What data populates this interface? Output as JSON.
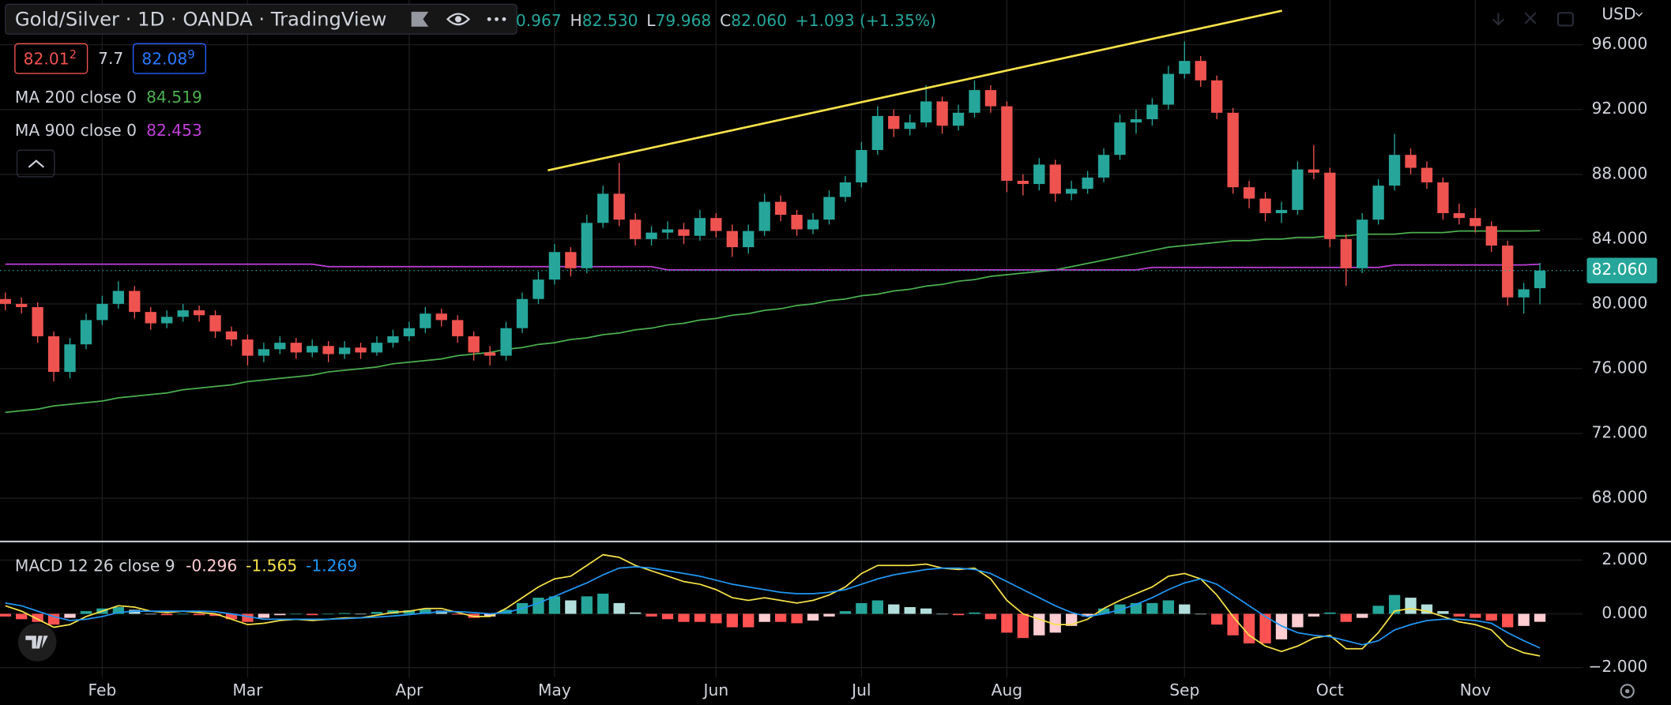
{
  "header": {
    "title": "Gold/Silver · 1D · OANDA · TradingView",
    "ohlc": [
      {
        "value": "0.967"
      },
      {
        "key": "H",
        "value": "82.530"
      },
      {
        "key": "L",
        "value": "79.968"
      },
      {
        "key": "C",
        "value": "82.060"
      },
      {
        "value": "+1.093 (+1.35%)"
      }
    ]
  },
  "quote": {
    "bid": "82.01",
    "bid_pip": "2",
    "spread": "7.7",
    "ask": "82.08",
    "ask_pip": "9"
  },
  "currency": "USD",
  "chart_data": [
    {
      "type": "candlestick",
      "categories": [
        null,
        null,
        null,
        null,
        null,
        null,
        "Feb",
        null,
        null,
        null,
        null,
        null,
        null,
        null,
        null,
        "Mar",
        null,
        null,
        null,
        null,
        null,
        null,
        null,
        null,
        null,
        "Apr",
        null,
        null,
        null,
        null,
        null,
        null,
        null,
        null,
        "May",
        null,
        null,
        null,
        null,
        null,
        null,
        null,
        null,
        null,
        "Jun",
        null,
        null,
        null,
        null,
        null,
        null,
        null,
        null,
        "Jul",
        null,
        null,
        null,
        null,
        null,
        null,
        null,
        null,
        "Aug",
        null,
        null,
        null,
        null,
        null,
        null,
        null,
        null,
        null,
        null,
        "Sep",
        null,
        null,
        null,
        null,
        null,
        null,
        null,
        null,
        "Oct",
        null,
        null,
        null,
        null,
        null,
        null,
        null,
        null,
        "Nov",
        null,
        null,
        null,
        null
      ],
      "candles": {
        "open": [
          80.3,
          80,
          79.8,
          78,
          75.8,
          77.5,
          79,
          80,
          80.8,
          79.5,
          78.8,
          79.2,
          79.6,
          79.3,
          78.3,
          77.8,
          76.8,
          77.2,
          77.6,
          77,
          77.4,
          76.9,
          77.3,
          77,
          77.6,
          78,
          78.5,
          79.4,
          79,
          78,
          77,
          76.8,
          78.5,
          80.3,
          81.5,
          83.2,
          82.2,
          85,
          86.8,
          85.2,
          84,
          84.4,
          84.6,
          84.2,
          85.3,
          84.5,
          83.5,
          84.5,
          86.3,
          85.5,
          84.6,
          85.2,
          86.6,
          87.5,
          89.5,
          91.6,
          90.8,
          91.2,
          92.5,
          91,
          91.8,
          93.2,
          92.2,
          87.6,
          87.4,
          88.6,
          86.8,
          87.1,
          87.8,
          89.2,
          91.2,
          91.4,
          92.3,
          94.2,
          95,
          93.8,
          91.8,
          87.2,
          86.5,
          85.6,
          85.8,
          88.3,
          88.1,
          84,
          82.2,
          85.2,
          87.3,
          89.2,
          88.4,
          87.5,
          85.6,
          85.3,
          84.8,
          83.6,
          80.4,
          80.967
        ],
        "high": [
          80.7,
          80.4,
          80.1,
          78.3,
          77.9,
          79.4,
          80.5,
          81.4,
          81.1,
          79.8,
          79.6,
          80.0,
          79.9,
          79.6,
          78.6,
          78.1,
          77.6,
          78.0,
          77.9,
          77.8,
          77.7,
          77.7,
          77.6,
          78.0,
          78.4,
          78.9,
          79.8,
          79.7,
          79.3,
          78.3,
          77.4,
          78.9,
          80.7,
          82.0,
          83.7,
          83.5,
          85.5,
          87.3,
          88.7,
          85.6,
          84.8,
          85.1,
          85.0,
          85.8,
          85.6,
          84.9,
          84.9,
          86.8,
          86.7,
          85.8,
          85.6,
          87.0,
          87.9,
          90.0,
          92.2,
          92.0,
          91.7,
          93.5,
          92.8,
          92.3,
          93.8,
          93.5,
          92.5,
          88.0,
          89.0,
          88.9,
          87.6,
          88.2,
          89.6,
          91.7,
          92.0,
          92.7,
          94.7,
          96.2,
          95.3,
          94.1,
          92.1,
          87.6,
          86.9,
          86.3,
          88.8,
          89.8,
          88.4,
          84.3,
          85.6,
          87.7,
          90.5,
          89.6,
          88.8,
          87.8,
          86.2,
          85.9,
          85.1,
          83.9,
          81.3,
          82.53
        ],
        "low": [
          79.6,
          79.4,
          77.6,
          75.2,
          75.4,
          77.2,
          78.7,
          79.7,
          79.1,
          78.4,
          78.5,
          78.9,
          78.9,
          77.9,
          77.4,
          76.2,
          76.4,
          76.9,
          76.6,
          76.7,
          76.4,
          76.6,
          76.6,
          76.8,
          77.3,
          77.7,
          78.2,
          78.6,
          77.6,
          76.5,
          76.2,
          76.5,
          78.2,
          80.0,
          81.2,
          81.7,
          81.9,
          84.7,
          84.8,
          83.6,
          83.6,
          84.0,
          83.7,
          83.9,
          84.1,
          82.9,
          83.1,
          84.2,
          85.1,
          84.2,
          84.3,
          84.9,
          86.3,
          87.2,
          89.2,
          90.3,
          90.4,
          90.9,
          90.5,
          90.7,
          91.5,
          91.8,
          86.9,
          86.7,
          87.0,
          86.3,
          86.4,
          86.8,
          87.5,
          88.9,
          90.5,
          91.0,
          92.0,
          93.9,
          93.4,
          91.4,
          86.8,
          85.9,
          85.1,
          85.0,
          85.5,
          87.7,
          83.5,
          81.1,
          81.9,
          84.9,
          87.0,
          88.0,
          87.1,
          85.2,
          84.9,
          84.4,
          83.2,
          79.9,
          79.4,
          79.968
        ],
        "close": [
          80,
          79.8,
          78,
          75.8,
          77.5,
          79,
          80,
          80.8,
          79.5,
          78.8,
          79.2,
          79.6,
          79.3,
          78.3,
          77.8,
          76.8,
          77.2,
          77.6,
          77,
          77.4,
          76.9,
          77.3,
          77,
          77.6,
          78,
          78.5,
          79.4,
          79,
          78,
          77,
          76.8,
          78.5,
          80.3,
          81.5,
          83.2,
          82.2,
          85,
          86.8,
          85.2,
          84,
          84.4,
          84.6,
          84.2,
          85.3,
          84.5,
          83.5,
          84.5,
          86.3,
          85.5,
          84.6,
          85.2,
          86.6,
          87.5,
          89.5,
          91.6,
          90.8,
          91.2,
          92.5,
          91,
          91.8,
          93.2,
          92.2,
          87.6,
          87.4,
          88.6,
          86.8,
          87.1,
          87.8,
          89.2,
          91.2,
          91.4,
          92.3,
          94.2,
          95,
          93.8,
          91.8,
          87.2,
          86.5,
          85.6,
          85.8,
          88.3,
          88.1,
          84,
          82.2,
          85.2,
          87.3,
          89.2,
          88.4,
          87.5,
          85.6,
          85.3,
          84.8,
          83.6,
          80.4,
          80.9,
          82.06
        ]
      },
      "up_color": "#26a69a",
      "down_color": "#ef5350",
      "last_label": "82.060",
      "series": [
        {
          "name": "MA 200 close 0",
          "color": "#4caf50",
          "values": [
            73.3,
            73.4,
            73.5,
            73.7,
            73.8,
            73.9,
            74.0,
            74.2,
            74.3,
            74.4,
            74.5,
            74.7,
            74.8,
            74.9,
            75.0,
            75.2,
            75.3,
            75.4,
            75.5,
            75.6,
            75.8,
            75.9,
            76.0,
            76.1,
            76.3,
            76.4,
            76.5,
            76.6,
            76.8,
            76.9,
            77.0,
            77.2,
            77.3,
            77.5,
            77.6,
            77.8,
            77.9,
            78.1,
            78.2,
            78.4,
            78.5,
            78.7,
            78.8,
            79.0,
            79.1,
            79.3,
            79.4,
            79.6,
            79.7,
            79.9,
            80.0,
            80.2,
            80.3,
            80.5,
            80.6,
            80.8,
            80.9,
            81.1,
            81.2,
            81.4,
            81.5,
            81.7,
            81.8,
            81.9,
            82.0,
            82.1,
            82.3,
            82.5,
            82.7,
            82.9,
            83.1,
            83.3,
            83.5,
            83.6,
            83.7,
            83.8,
            83.9,
            83.9,
            84.0,
            84.0,
            84.1,
            84.1,
            84.2,
            84.2,
            84.3,
            84.3,
            84.3,
            84.4,
            84.4,
            84.4,
            84.5,
            84.5,
            84.5,
            84.5,
            84.5,
            84.519
          ]
        },
        {
          "name": "MA 900 close 0",
          "color": "#c040d8",
          "values": [
            82.45,
            82.45,
            82.45,
            82.45,
            82.45,
            82.45,
            82.45,
            82.45,
            82.45,
            82.45,
            82.45,
            82.45,
            82.45,
            82.45,
            82.45,
            82.45,
            82.45,
            82.45,
            82.45,
            82.45,
            82.3,
            82.3,
            82.3,
            82.3,
            82.3,
            82.3,
            82.3,
            82.3,
            82.3,
            82.3,
            82.3,
            82.3,
            82.3,
            82.3,
            82.3,
            82.3,
            82.3,
            82.3,
            82.3,
            82.3,
            82.3,
            82.1,
            82.1,
            82.1,
            82.1,
            82.1,
            82.1,
            82.1,
            82.1,
            82.1,
            82.1,
            82.1,
            82.1,
            82.1,
            82.1,
            82.1,
            82.1,
            82.1,
            82.1,
            82.1,
            82.1,
            82.1,
            82.1,
            82.1,
            82.1,
            82.1,
            82.1,
            82.1,
            82.1,
            82.1,
            82.1,
            82.25,
            82.25,
            82.25,
            82.25,
            82.25,
            82.25,
            82.25,
            82.25,
            82.25,
            82.25,
            82.25,
            82.25,
            82.25,
            82.25,
            82.25,
            82.4,
            82.4,
            82.4,
            82.4,
            82.4,
            82.4,
            82.4,
            82.4,
            82.4,
            82.453
          ]
        }
      ],
      "ylim": [
        65.36,
        98.76
      ],
      "yticks": [
        {
          "value": 96,
          "label": "96.000"
        },
        {
          "value": 92,
          "label": "92.000"
        },
        {
          "value": 88,
          "label": "88.000"
        },
        {
          "value": 84,
          "label": "84.000"
        },
        {
          "value": 80,
          "label": "80.000"
        },
        {
          "value": 76,
          "label": "76.000"
        },
        {
          "value": 72,
          "label": "72.000"
        },
        {
          "value": 68,
          "label": "68.000"
        }
      ],
      "grid": true
    },
    {
      "type": "macd",
      "title": "MACD 12 26 close 9",
      "histogram": {
        "colors": [
          "#26a69a",
          "#b2dfdb",
          "#ffcdd2",
          "#ff5252"
        ],
        "values": [
          -0.1,
          -0.2,
          -0.3,
          -0.4,
          -0.15,
          0.1,
          0.2,
          0.25,
          0.15,
          0,
          -0.05,
          0,
          -0.05,
          -0.08,
          -0.2,
          -0.3,
          -0.15,
          -0.05,
          0,
          -0.05,
          0,
          0.03,
          0,
          0.07,
          0.13,
          0.13,
          0.17,
          0.12,
          -0.03,
          -0.15,
          -0.1,
          0.15,
          0.4,
          0.6,
          0.65,
          0.5,
          0.65,
          0.75,
          0.4,
          0.05,
          -0.1,
          -0.2,
          -0.3,
          -0.3,
          -0.35,
          -0.5,
          -0.5,
          -0.3,
          -0.3,
          -0.35,
          -0.25,
          -0.1,
          0.1,
          0.4,
          0.5,
          0.35,
          0.25,
          0.2,
          0,
          -0.05,
          0.05,
          -0.2,
          -0.7,
          -0.9,
          -0.8,
          -0.7,
          -0.45,
          -0.1,
          0.2,
          0.35,
          0.4,
          0.4,
          0.5,
          0.35,
          0,
          -0.4,
          -0.8,
          -1.1,
          -1.1,
          -0.95,
          -0.5,
          -0.1,
          0.05,
          -0.3,
          -0.15,
          0.3,
          0.7,
          0.6,
          0.35,
          0.1,
          -0.1,
          -0.15,
          -0.25,
          -0.5,
          -0.45,
          -0.296
        ]
      },
      "series": [
        {
          "color": "#f5e14a",
          "values": [
            0.3,
            0.1,
            -0.2,
            -0.5,
            -0.4,
            -0.1,
            0.1,
            0.3,
            0.25,
            0.1,
            0.05,
            0.1,
            0.05,
            0,
            -0.2,
            -0.4,
            -0.35,
            -0.25,
            -0.2,
            -0.25,
            -0.2,
            -0.15,
            -0.15,
            -0.05,
            0.05,
            0.1,
            0.2,
            0.2,
            0.05,
            -0.1,
            -0.1,
            0.2,
            0.6,
            1.0,
            1.3,
            1.4,
            1.8,
            2.2,
            2.1,
            1.8,
            1.6,
            1.4,
            1.2,
            1.1,
            0.9,
            0.6,
            0.5,
            0.6,
            0.5,
            0.4,
            0.5,
            0.7,
            1.0,
            1.5,
            1.8,
            1.8,
            1.8,
            1.85,
            1.7,
            1.65,
            1.7,
            1.3,
            0.5,
            0,
            -0.2,
            -0.4,
            -0.4,
            -0.2,
            0.2,
            0.5,
            0.75,
            1.0,
            1.4,
            1.5,
            1.3,
            0.7,
            -0.1,
            -0.8,
            -1.2,
            -1.4,
            -1.2,
            -0.9,
            -0.8,
            -1.3,
            -1.3,
            -0.7,
            0.1,
            0.2,
            0.1,
            -0.1,
            -0.3,
            -0.4,
            -0.6,
            -1.2,
            -1.45,
            -1.565
          ]
        },
        {
          "color": "#2196f3",
          "values": [
            0.4,
            0.3,
            0.1,
            -0.1,
            -0.25,
            -0.2,
            -0.1,
            0.05,
            0.1,
            0.1,
            0.1,
            0.1,
            0.1,
            0.08,
            0,
            -0.1,
            -0.2,
            -0.2,
            -0.2,
            -0.2,
            -0.2,
            -0.18,
            -0.15,
            -0.12,
            -0.08,
            -0.03,
            0.03,
            0.08,
            0.08,
            0.05,
            0,
            0.05,
            0.2,
            0.4,
            0.65,
            0.9,
            1.15,
            1.45,
            1.7,
            1.75,
            1.7,
            1.6,
            1.5,
            1.4,
            1.25,
            1.1,
            1.0,
            0.9,
            0.8,
            0.75,
            0.75,
            0.8,
            0.9,
            1.1,
            1.3,
            1.45,
            1.55,
            1.65,
            1.7,
            1.7,
            1.65,
            1.5,
            1.2,
            0.9,
            0.6,
            0.3,
            0.05,
            -0.1,
            0,
            0.15,
            0.35,
            0.6,
            0.9,
            1.15,
            1.3,
            1.1,
            0.7,
            0.3,
            -0.1,
            -0.45,
            -0.7,
            -0.8,
            -0.85,
            -1.0,
            -1.15,
            -1.0,
            -0.6,
            -0.4,
            -0.25,
            -0.2,
            -0.2,
            -0.25,
            -0.35,
            -0.7,
            -1.0,
            -1.269
          ]
        }
      ],
      "ylim": [
        -2.36,
        2.63
      ],
      "yticks": [
        {
          "value": 2,
          "label": "2.000"
        },
        {
          "value": 0,
          "label": "0.000"
        },
        {
          "value": -2,
          "label": "−2.000"
        }
      ]
    }
  ]
}
